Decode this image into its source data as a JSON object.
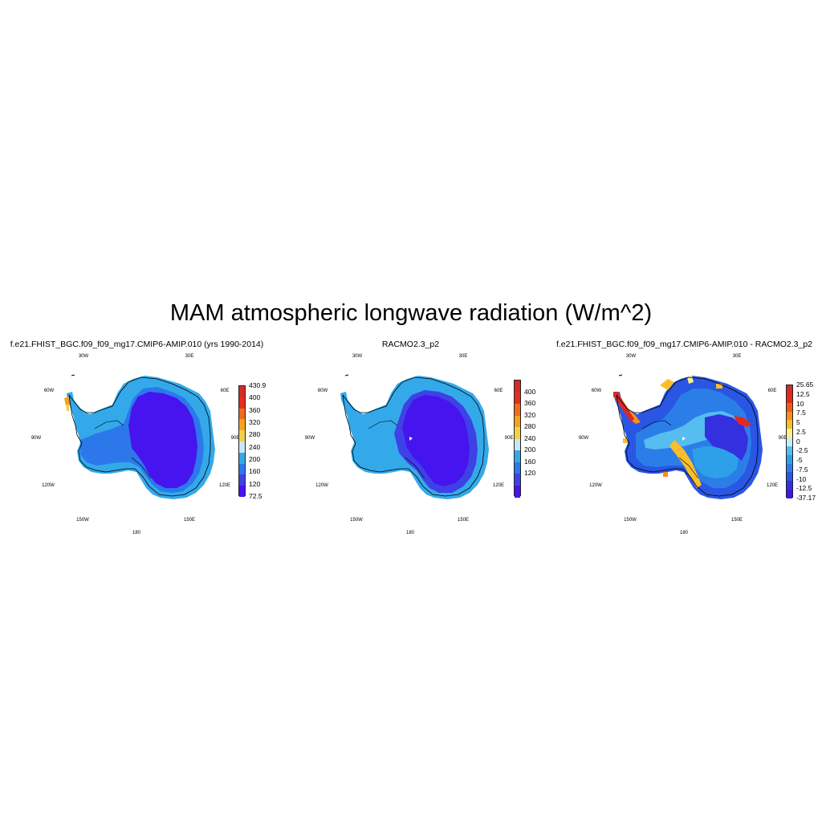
{
  "title": "MAM atmospheric longwave radiation (W/m^2)",
  "longitude_labels": {
    "w30": "30W",
    "e30": "30E",
    "w60": "60W",
    "e60": "60E",
    "w90": "90W",
    "e90": "90E",
    "w120": "120W",
    "e120": "120E",
    "w150": "150W",
    "e150": "150E",
    "d180": "180"
  },
  "panels": [
    {
      "title": "f.e21.FHIST_BGC.f09_f09_mg17.CMIP6-AMIP.010 (yrs 1990-2014)",
      "colorbar": {
        "labels": [
          "430.9",
          "400",
          "360",
          "320",
          "280",
          "240",
          "200",
          "160",
          "120",
          "72.5"
        ],
        "colors": [
          "#d42b28",
          "#e52f1c",
          "#f26a1a",
          "#f7a21d",
          "#f3d04a",
          "#c7e6f4",
          "#34a9ea",
          "#2c78ea",
          "#3d41e6",
          "#4514ee"
        ]
      }
    },
    {
      "title": "RACMO2.3_p2",
      "colorbar": {
        "labels": [
          "400",
          "360",
          "320",
          "280",
          "240",
          "200",
          "160",
          "120"
        ],
        "colors": [
          "#d42b28",
          "#e52f1c",
          "#f26a1a",
          "#f7a21d",
          "#f3d04a",
          "#c7e6f4",
          "#34a9ea",
          "#2c78ea",
          "#3d41e6",
          "#4514ee"
        ]
      }
    },
    {
      "title": "f.e21.FHIST_BGC.f09_f09_mg17.CMIP6-AMIP.010 - RACMO2.3_p2",
      "colorbar": {
        "labels": [
          "25.65",
          "12.5",
          "10",
          "7.5",
          "5",
          "2.5",
          "0",
          "-2.5",
          "-5",
          "-7.5",
          "-10",
          "-12.5",
          "-37.17"
        ],
        "colors": [
          "#d42b28",
          "#e8281b",
          "#f45a17",
          "#f98e1c",
          "#fbbe2a",
          "#fbf08c",
          "#c9ecf7",
          "#55bdf0",
          "#2ea0ea",
          "#2b7ee8",
          "#2a56e4",
          "#3430e0",
          "#4414ee"
        ]
      }
    }
  ]
}
